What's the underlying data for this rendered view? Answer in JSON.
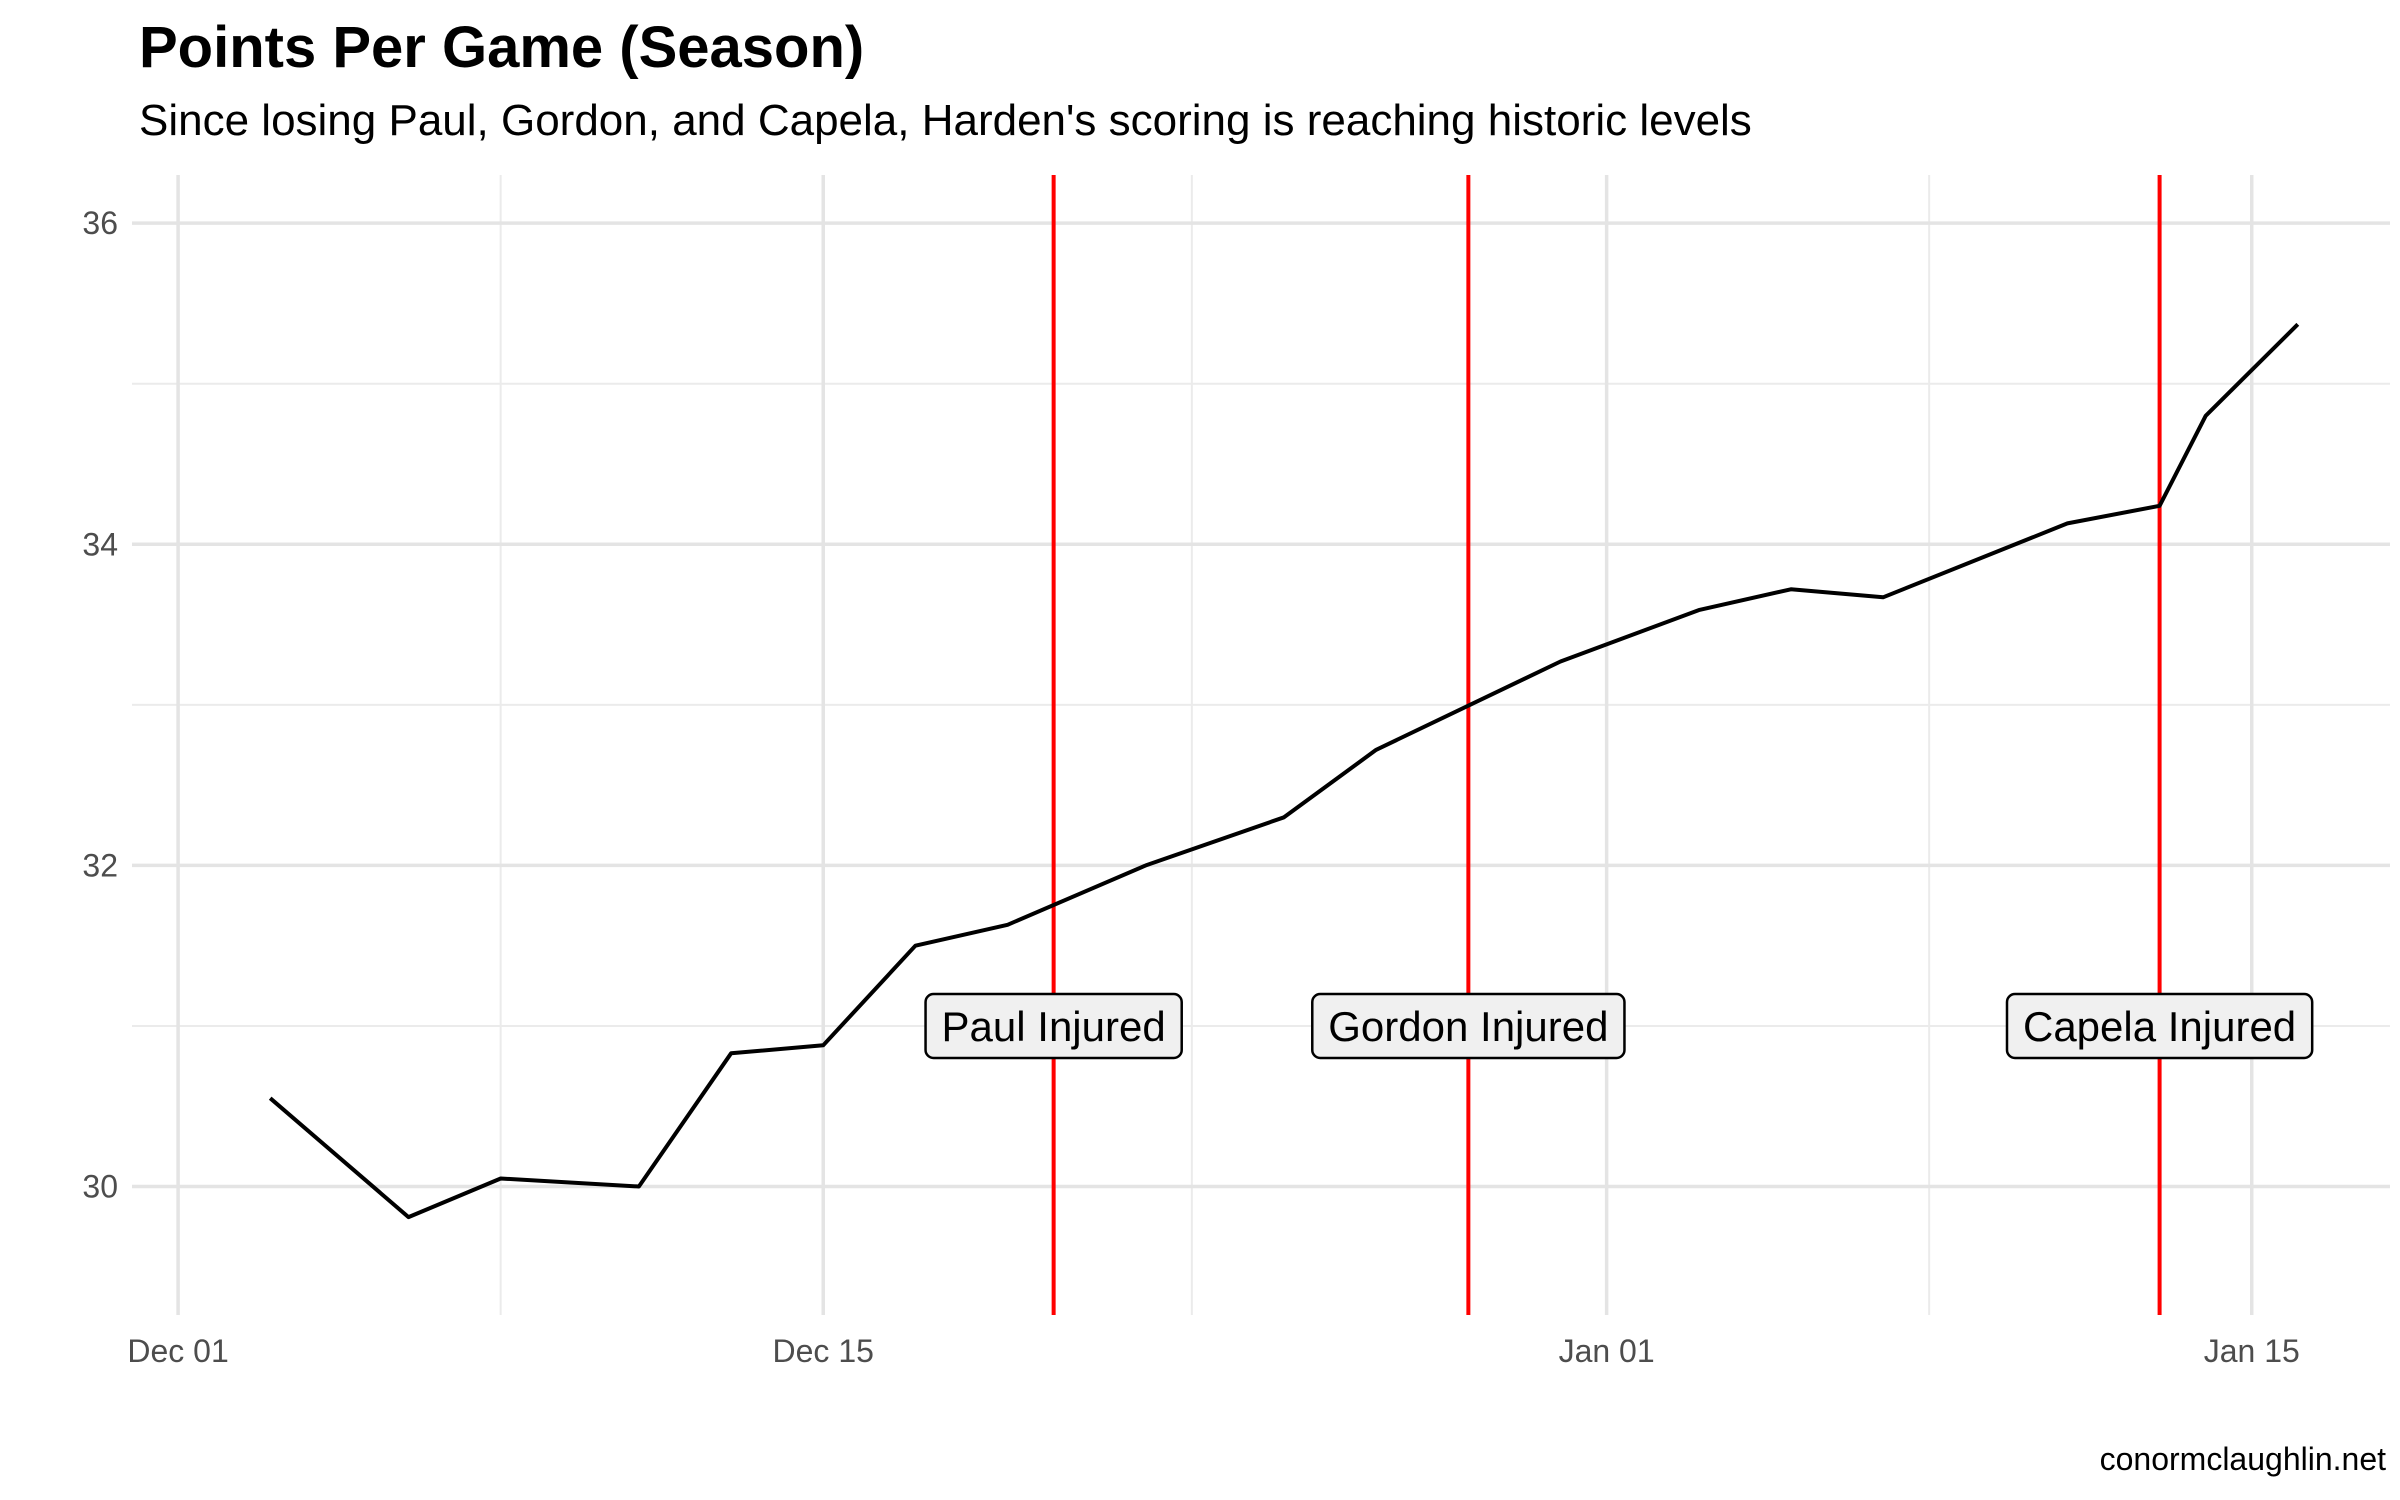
{
  "chart_data": {
    "type": "line",
    "title": "Points Per Game (Season)",
    "subtitle": "Since losing Paul, Gordon, and Capela, Harden's scoring is reaching historic levels",
    "caption": "conormclaughlin.net",
    "xlabel": "",
    "ylabel": "",
    "x_type": "date",
    "xlim": [
      "2018-11-30",
      "2019-01-18"
    ],
    "ylim": [
      29.2,
      36.3
    ],
    "x_ticks": [
      {
        "date": "2018-12-01",
        "label": "Dec 01"
      },
      {
        "date": "2018-12-15",
        "label": "Dec 15"
      },
      {
        "date": "2019-01-01",
        "label": "Jan 01"
      },
      {
        "date": "2019-01-15",
        "label": "Jan 15"
      }
    ],
    "x_minor_ticks": [
      "2018-12-08",
      "2018-12-23",
      "2019-01-08"
    ],
    "y_ticks": [
      30,
      32,
      34,
      36
    ],
    "y_minor_ticks": [
      31,
      33,
      35
    ],
    "grid": true,
    "series": [
      {
        "name": "",
        "color": "#000000",
        "points": [
          {
            "x": "2018-12-03",
            "y": 30.55
          },
          {
            "x": "2018-12-06",
            "y": 29.81
          },
          {
            "x": "2018-12-08",
            "y": 30.05
          },
          {
            "x": "2018-12-11",
            "y": 30.0
          },
          {
            "x": "2018-12-13",
            "y": 30.83
          },
          {
            "x": "2018-12-15",
            "y": 30.88
          },
          {
            "x": "2018-12-17",
            "y": 31.5
          },
          {
            "x": "2018-12-19",
            "y": 31.63
          },
          {
            "x": "2018-12-22",
            "y": 32.0
          },
          {
            "x": "2018-12-25",
            "y": 32.3
          },
          {
            "x": "2018-12-27",
            "y": 32.72
          },
          {
            "x": "2018-12-31",
            "y": 33.27
          },
          {
            "x": "2019-01-03",
            "y": 33.59
          },
          {
            "x": "2019-01-05",
            "y": 33.72
          },
          {
            "x": "2019-01-07",
            "y": 33.67
          },
          {
            "x": "2019-01-11",
            "y": 34.13
          },
          {
            "x": "2019-01-13",
            "y": 34.24
          },
          {
            "x": "2019-01-14",
            "y": 34.8
          },
          {
            "x": "2019-01-16",
            "y": 35.37
          }
        ]
      }
    ],
    "annotations": [
      {
        "x": "2018-12-20",
        "label": "Paul Injured",
        "color": "#ff0000",
        "label_y": 31.0
      },
      {
        "x": "2018-12-29",
        "label": "Gordon Injured",
        "color": "#ff0000",
        "label_y": 31.0
      },
      {
        "x": "2019-01-13",
        "label": "Capela Injured",
        "color": "#ff0000",
        "label_y": 31.0
      }
    ]
  }
}
